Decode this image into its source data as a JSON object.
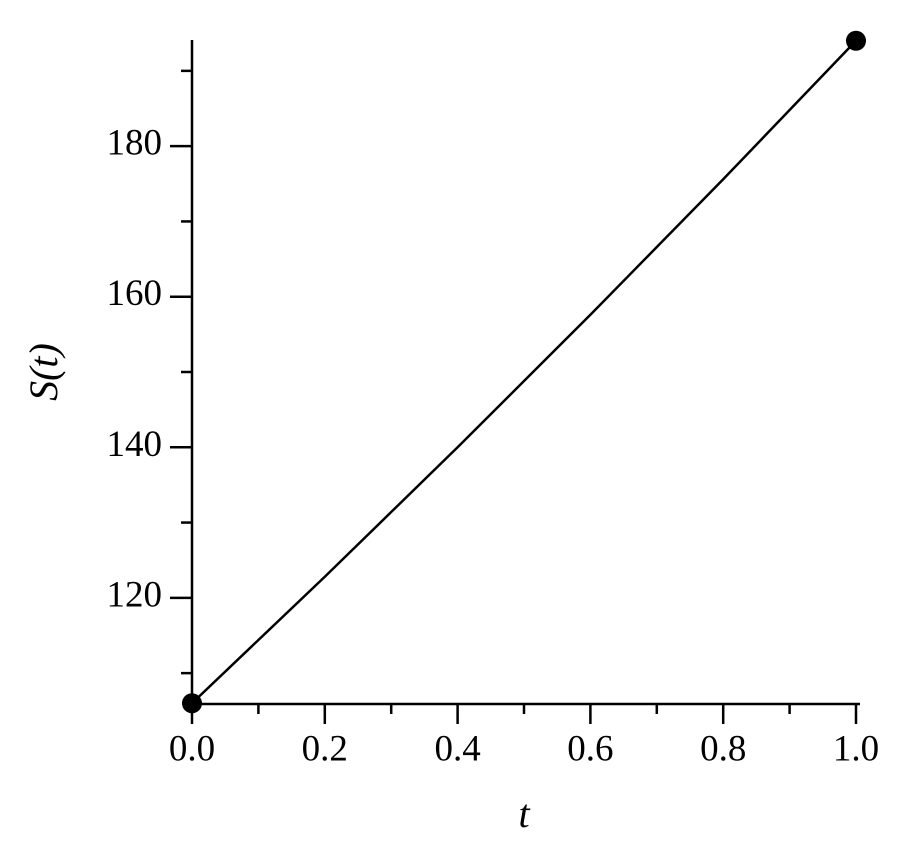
{
  "chart_data": {
    "type": "line",
    "x_label": "t",
    "y_label": "S(t)",
    "x": [
      0,
      0.1,
      0.2,
      0.3,
      0.4,
      0.5,
      0.6,
      0.7,
      0.8,
      0.9,
      1.0
    ],
    "series": [
      {
        "color": "#000000",
        "values": [
          106,
          114.4,
          122.8,
          131.4,
          140,
          148.8,
          157.6,
          166.6,
          175.6,
          184.8,
          194
        ]
      }
    ],
    "end_markers": true,
    "xlim": [
      0,
      1
    ],
    "ylim": [
      105.9,
      194.1
    ],
    "xticks": [
      {
        "value": 0,
        "label": "0.0"
      },
      0.2,
      0.4,
      0.6,
      0.8,
      {
        "value": 1,
        "label": "1.0"
      }
    ],
    "xminorticks": [
      0.1,
      0.3,
      0.5,
      0.7,
      0.9
    ],
    "yticks": [
      120,
      140,
      160,
      180
    ],
    "yminorticks": [
      110,
      130,
      150,
      170,
      190
    ],
    "grid": false
  }
}
